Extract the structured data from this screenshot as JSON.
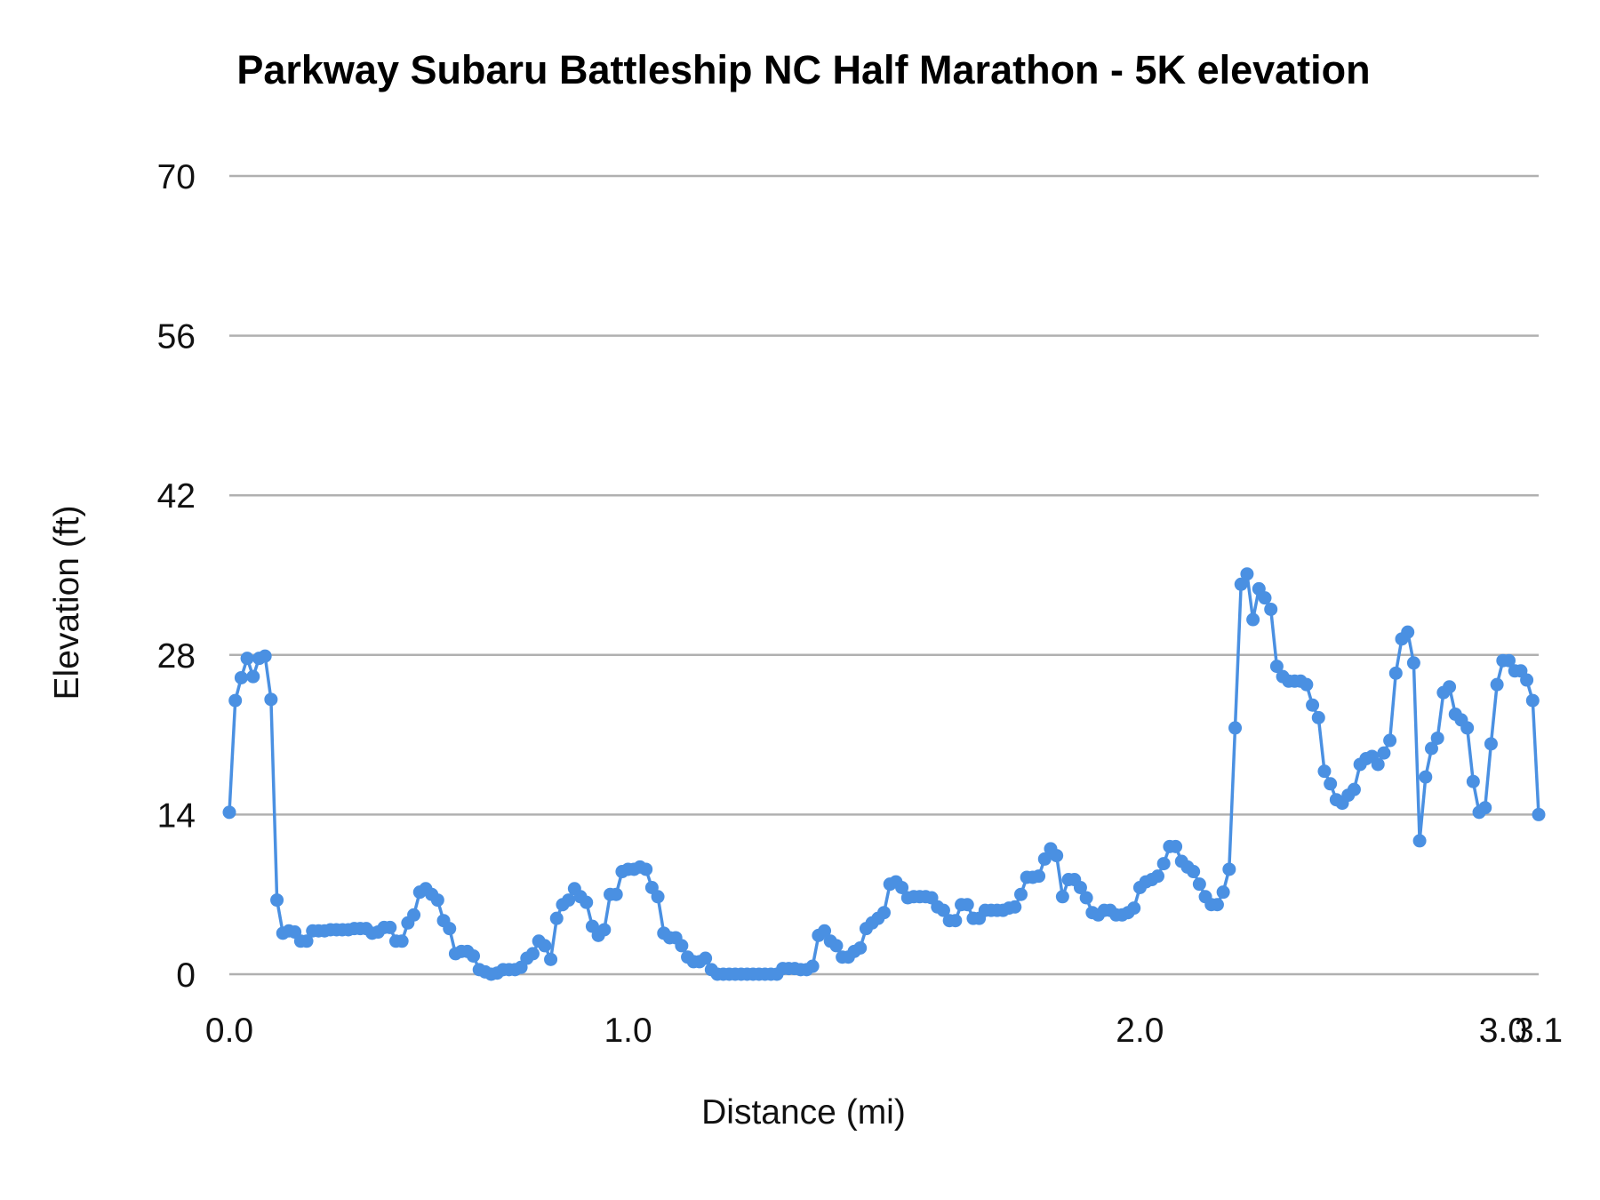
{
  "chart_data": {
    "type": "line",
    "title": "Parkway Subaru Battleship NC Half Marathon - 5K elevation",
    "xlabel": "Distance (mi)",
    "ylabel": "Elevation (ft)",
    "ylim": [
      0,
      70
    ],
    "y_ticks": [
      "0",
      "14",
      "28",
      "42",
      "56",
      "70"
    ],
    "x_ticks": [
      {
        "label": "0.0",
        "index": 0
      },
      {
        "label": "1.0",
        "index": 67
      },
      {
        "label": "2.0",
        "index": 153
      },
      {
        "label": "3.0",
        "index": 214
      },
      {
        "label": "3.1",
        "index": 220
      }
    ],
    "grid": true,
    "markers": true,
    "color": "#4a90e2",
    "gridline_color": "#b0b0b0",
    "values": [
      14.2,
      24,
      26,
      27.7,
      26.1,
      27.7,
      27.9,
      24.1,
      6.5,
      3.6,
      3.8,
      3.7,
      2.9,
      2.9,
      3.8,
      3.8,
      3.8,
      3.9,
      3.9,
      3.9,
      3.9,
      4.0,
      4.0,
      4.0,
      3.6,
      3.7,
      4.1,
      4.1,
      2.9,
      2.9,
      4.5,
      5.2,
      7.2,
      7.5,
      7.0,
      6.5,
      4.7,
      4.0,
      1.8,
      2.0,
      2.0,
      1.6,
      0.4,
      0.2,
      0,
      0.1,
      0.4,
      0.4,
      0.4,
      0.6,
      1.4,
      1.8,
      2.9,
      2.5,
      1.3,
      4.9,
      6.1,
      6.5,
      7.5,
      6.8,
      6.3,
      4.2,
      3.4,
      3.9,
      7.0,
      7.0,
      9.0,
      9.2,
      9.2,
      9.4,
      9.2,
      7.6,
      6.8,
      3.6,
      3.2,
      3.2,
      2.5,
      1.5,
      1.1,
      1.1,
      1.4,
      0.4,
      0,
      0,
      0,
      0,
      0,
      0,
      0,
      0,
      0,
      0,
      0,
      0.5,
      0.5,
      0.5,
      0.4,
      0.4,
      0.7,
      3.4,
      3.8,
      2.9,
      2.5,
      1.5,
      1.5,
      2.0,
      2.3,
      4.0,
      4.5,
      4.9,
      5.4,
      7.9,
      8.1,
      7.6,
      6.7,
      6.8,
      6.8,
      6.8,
      6.7,
      5.9,
      5.6,
      4.7,
      4.7,
      6.1,
      6.1,
      4.9,
      4.9,
      5.6,
      5.6,
      5.6,
      5.6,
      5.8,
      5.9,
      7.0,
      8.5,
      8.5,
      8.6,
      10.1,
      11.0,
      10.4,
      6.8,
      8.3,
      8.3,
      7.6,
      6.7,
      5.4,
      5.2,
      5.6,
      5.6,
      5.2,
      5.2,
      5.4,
      5.8,
      7.6,
      8.1,
      8.3,
      8.6,
      9.7,
      11.2,
      11.2,
      9.9,
      9.4,
      9.0,
      7.9,
      6.8,
      6.1,
      6.1,
      7.2,
      9.2,
      21.6,
      34.2,
      35.1,
      31.1,
      33.8,
      33.0,
      32.0,
      27.0,
      26.1,
      25.7,
      25.7,
      25.7,
      25.4,
      23.6,
      22.5,
      17.8,
      16.7,
      15.3,
      15.0,
      15.7,
      16.2,
      18.4,
      18.9,
      19.1,
      18.4,
      19.4,
      20.5,
      26.4,
      29.4,
      30.0,
      27.3,
      11.7,
      17.3,
      19.8,
      20.7,
      24.7,
      25.2,
      22.8,
      22.3,
      21.6,
      16.9,
      14.2,
      14.6,
      20.2,
      25.4,
      27.5,
      27.5,
      26.6,
      26.6,
      25.8,
      24.0,
      14.0
    ]
  }
}
